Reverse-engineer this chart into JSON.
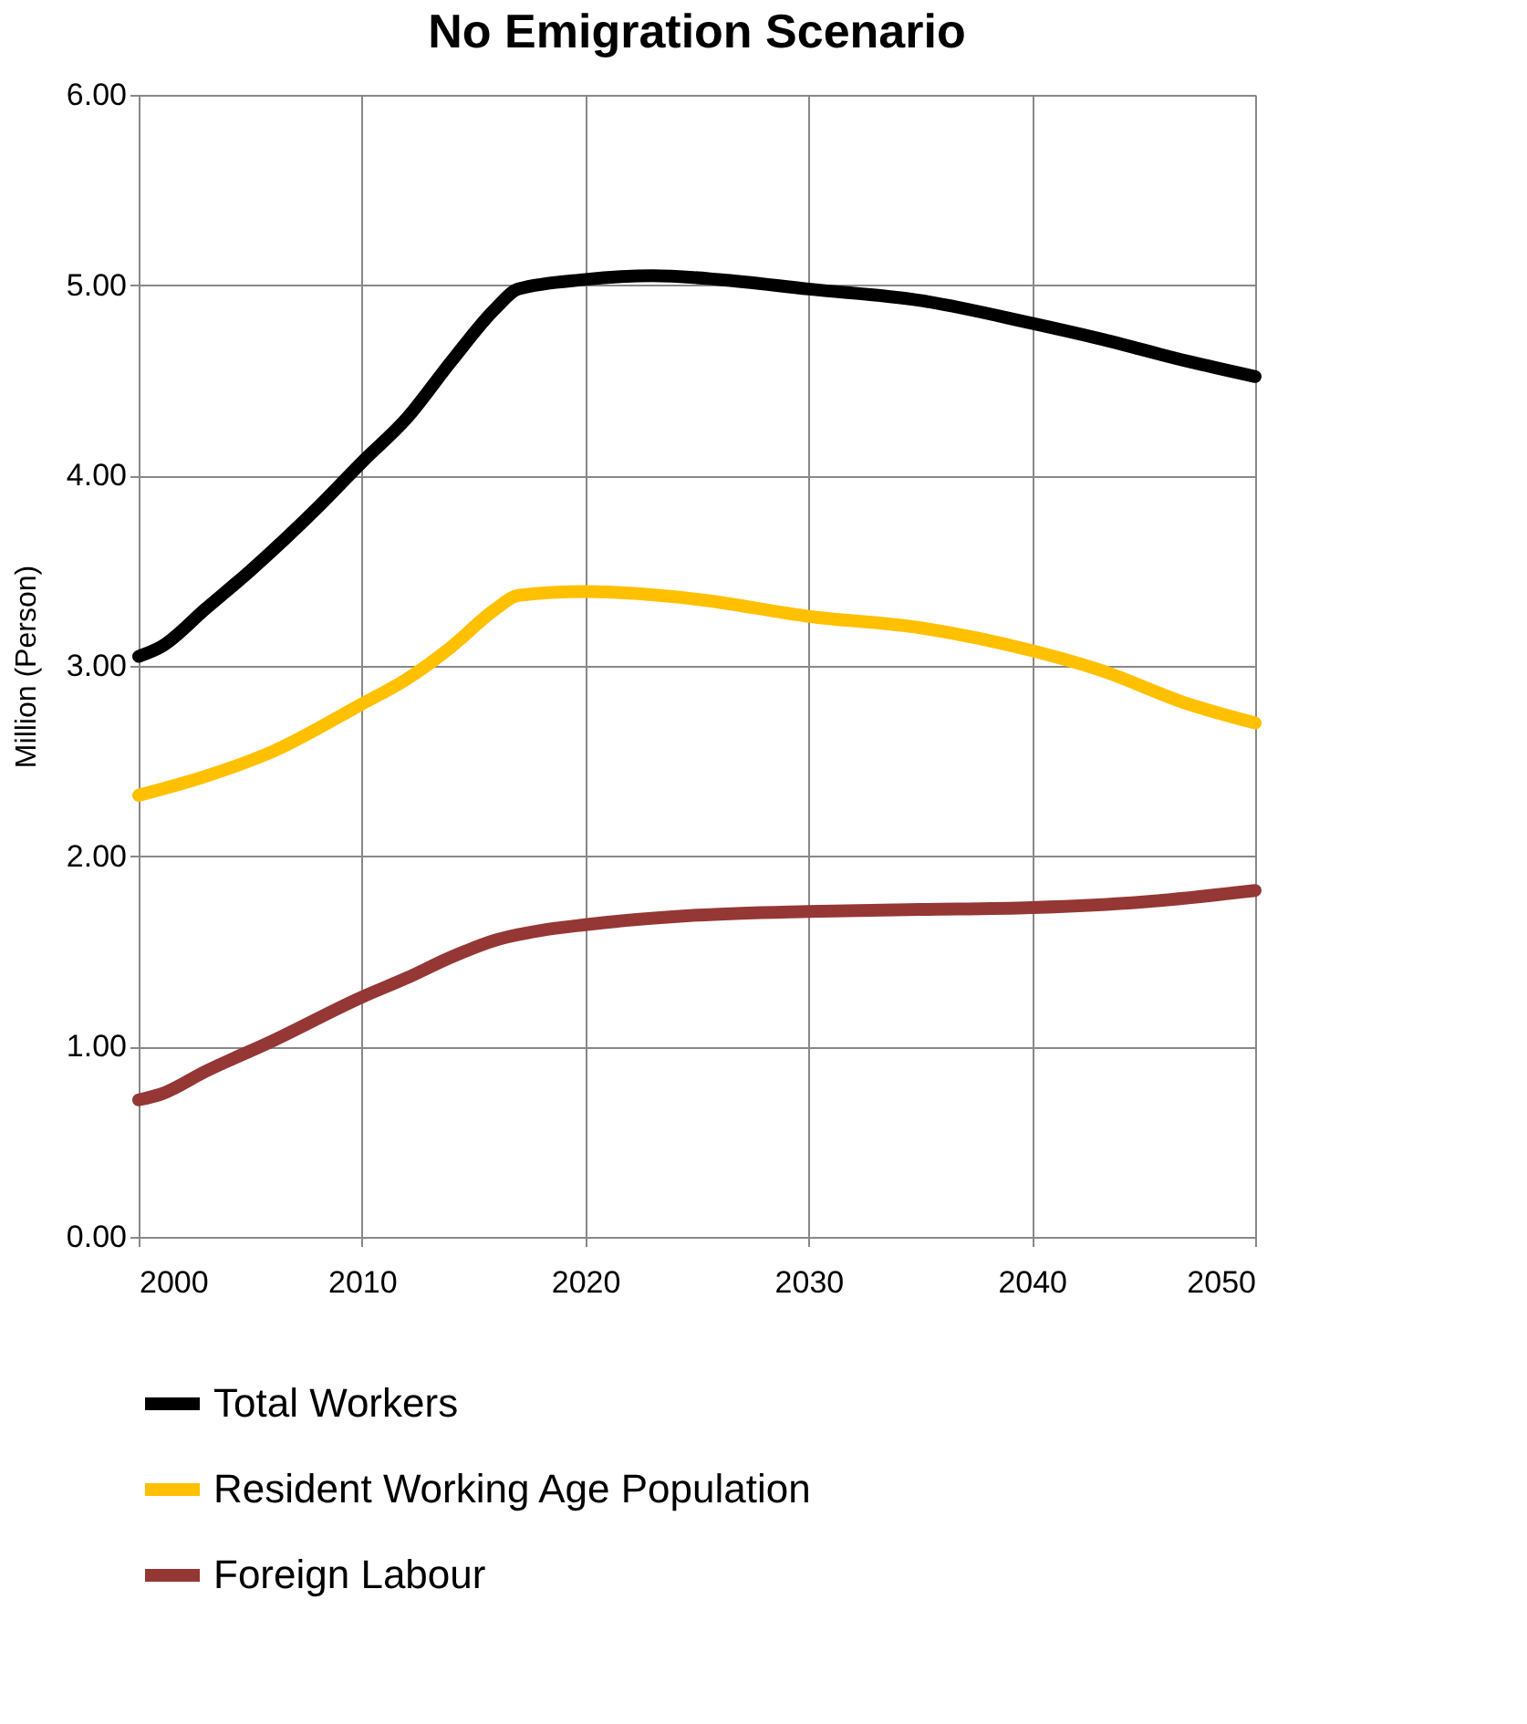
{
  "chart_data": {
    "type": "line",
    "title": "No Emigration Scenario",
    "ylabel": "Million (Person)",
    "xlim": [
      2000,
      2050
    ],
    "xticks": [
      2000,
      2010,
      2020,
      2030,
      2040,
      2050
    ],
    "ylim": [
      0,
      6
    ],
    "yticks": [
      {
        "value": 0,
        "label": "0.00"
      },
      {
        "value": 1,
        "label": "1.00"
      },
      {
        "value": 2,
        "label": "2.00"
      },
      {
        "value": 3,
        "label": "3.00"
      },
      {
        "value": 4,
        "label": "4.00"
      },
      {
        "value": 5,
        "label": "5.00"
      },
      {
        "value": 6,
        "label": "6.00"
      }
    ],
    "grid": true,
    "legend": "bottom",
    "line_style": "solid",
    "series": [
      {
        "name": "Total Workers",
        "color": "#000000",
        "x": [
          2000,
          2001,
          2003,
          2005,
          2008,
          2010,
          2012,
          2014,
          2016,
          2017,
          2020,
          2023,
          2026,
          2030,
          2035,
          2040,
          2043,
          2047,
          2050
        ],
        "values": [
          3.05,
          3.1,
          3.3,
          3.5,
          3.83,
          4.07,
          4.3,
          4.6,
          4.88,
          4.98,
          5.03,
          5.05,
          5.03,
          4.98,
          4.92,
          4.8,
          4.72,
          4.6,
          4.52
        ]
      },
      {
        "name": "Resident Working Age Population",
        "color": "#ffc000",
        "x": [
          2000,
          2003,
          2006,
          2010,
          2012,
          2014,
          2016,
          2017,
          2020,
          2025,
          2030,
          2035,
          2040,
          2043,
          2047,
          2050
        ],
        "values": [
          2.32,
          2.42,
          2.55,
          2.8,
          2.93,
          3.1,
          3.3,
          3.37,
          3.39,
          3.35,
          3.26,
          3.2,
          3.08,
          2.98,
          2.8,
          2.7
        ]
      },
      {
        "name": "Foreign Labour",
        "color": "#953735",
        "x": [
          2000,
          2001,
          2003,
          2006,
          2010,
          2012,
          2014,
          2016,
          2018,
          2020,
          2025,
          2030,
          2035,
          2040,
          2045,
          2050
        ],
        "values": [
          0.72,
          0.75,
          0.87,
          1.03,
          1.26,
          1.36,
          1.47,
          1.56,
          1.61,
          1.64,
          1.69,
          1.71,
          1.72,
          1.73,
          1.76,
          1.82
        ]
      }
    ]
  }
}
